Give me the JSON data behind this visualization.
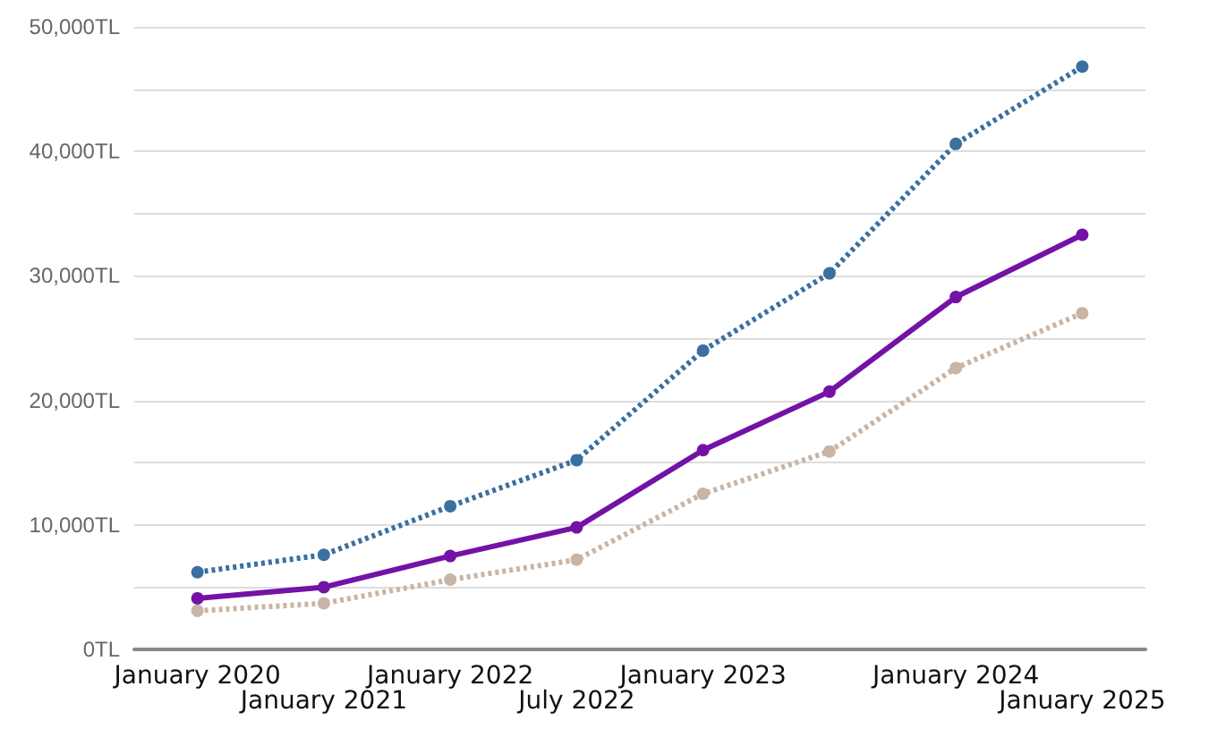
{
  "chart_data": {
    "type": "line",
    "categories": [
      "January 2020",
      "January 2021",
      "January 2022",
      "July 2022",
      "January 2023",
      null,
      "January 2024",
      "January 2025"
    ],
    "series": [
      {
        "color": "#3b6f9f",
        "line_style": "dotted",
        "values": [
          6200,
          7600,
          11500,
          15200,
          24000,
          30200,
          40600,
          46800
        ]
      },
      {
        "color": "#7312a6",
        "line_style": "solid",
        "values": [
          4100,
          5000,
          7500,
          9800,
          16000,
          20700,
          28300,
          33300
        ]
      },
      {
        "color": "#c9b5a5",
        "line_style": "dotted",
        "values": [
          3100,
          3700,
          5600,
          7200,
          12500,
          15900,
          22600,
          27000
        ]
      }
    ],
    "ylim": [
      0,
      50000
    ],
    "yticks": [
      {
        "value": 0,
        "label": "0TL"
      },
      {
        "value": 5000,
        "label": null
      },
      {
        "value": 10000,
        "label": "10,000TL"
      },
      {
        "value": 15000,
        "label": null
      },
      {
        "value": 20000,
        "label": "20,000TL"
      },
      {
        "value": 25000,
        "label": null
      },
      {
        "value": 30000,
        "label": "30,000TL"
      },
      {
        "value": 35000,
        "label": null
      },
      {
        "value": 40000,
        "label": "40,000TL"
      },
      {
        "value": 45000,
        "label": null
      },
      {
        "value": 50000,
        "label": "50,000TL"
      }
    ],
    "grid": "y",
    "marker": "circle"
  }
}
